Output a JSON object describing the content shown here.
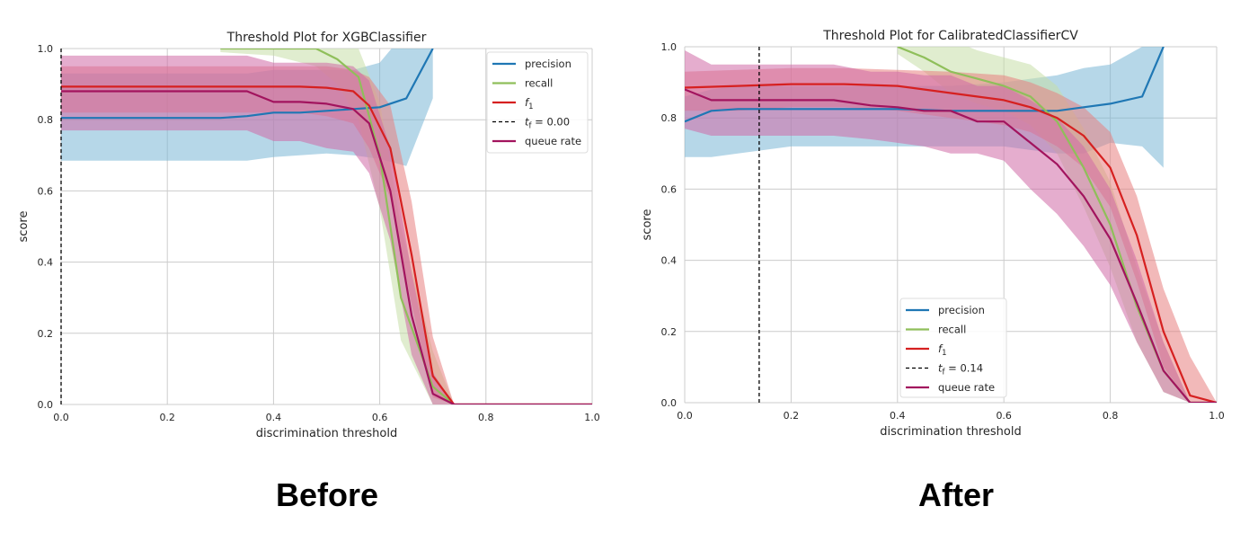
{
  "captions": {
    "before": "Before",
    "after": "After"
  },
  "colors": {
    "precision": "#1f77b4",
    "recall": "#8fbf5a",
    "f1": "#d62020",
    "queue": "#a2145e",
    "precision_band": "#7ab6d6",
    "recall_band": "#c6dea8",
    "f1_band": "#e88080",
    "queue_band": "#d06aa6"
  },
  "chart_data": [
    {
      "type": "line",
      "title": "Threshold Plot for XGBClassifier",
      "xlabel": "discrimination threshold",
      "ylabel": "score",
      "xlim": [
        0,
        1
      ],
      "ylim": [
        0,
        1
      ],
      "xticks": [
        "0.0",
        "0.2",
        "0.4",
        "0.6",
        "0.8",
        "1.0"
      ],
      "yticks": [
        "0.0",
        "0.2",
        "0.4",
        "0.6",
        "0.8",
        "1.0"
      ],
      "grid": true,
      "legend_position": "top-right",
      "threshold": 0.0,
      "series": [
        {
          "name": "precision",
          "key": "precision",
          "x": [
            0,
            0.1,
            0.2,
            0.3,
            0.35,
            0.4,
            0.45,
            0.5,
            0.55,
            0.6,
            0.65,
            0.7
          ],
          "y": [
            0.805,
            0.805,
            0.805,
            0.805,
            0.81,
            0.82,
            0.82,
            0.825,
            0.83,
            0.835,
            0.86,
            1.0
          ],
          "lo": [
            0.685,
            0.685,
            0.685,
            0.685,
            0.685,
            0.695,
            0.7,
            0.705,
            0.7,
            0.69,
            0.67,
            0.86
          ],
          "hi": [
            0.93,
            0.93,
            0.93,
            0.93,
            0.93,
            0.94,
            0.94,
            0.94,
            0.94,
            0.96,
            1.05,
            1.05
          ]
        },
        {
          "name": "recall",
          "key": "recall",
          "x": [
            0.3,
            0.4,
            0.48,
            0.52,
            0.56,
            0.6,
            0.64,
            0.7,
            0.74,
            1.0
          ],
          "y": [
            1.0,
            1.0,
            1.0,
            0.97,
            0.92,
            0.7,
            0.3,
            0.05,
            0.0,
            0.0
          ],
          "lo": [
            0.99,
            0.98,
            0.95,
            0.9,
            0.8,
            0.55,
            0.18,
            0.0,
            0.0,
            0.0
          ],
          "hi": [
            1.05,
            1.05,
            1.05,
            1.05,
            1.0,
            0.85,
            0.5,
            0.15,
            0.0,
            0.0
          ]
        },
        {
          "name": "f1",
          "key": "f1",
          "x": [
            0,
            0.1,
            0.2,
            0.3,
            0.35,
            0.4,
            0.45,
            0.5,
            0.55,
            0.58,
            0.62,
            0.66,
            0.7,
            0.74,
            1.0
          ],
          "y": [
            0.893,
            0.893,
            0.893,
            0.893,
            0.893,
            0.893,
            0.893,
            0.89,
            0.88,
            0.84,
            0.72,
            0.42,
            0.08,
            0.0,
            0.0
          ],
          "lo": [
            0.82,
            0.82,
            0.82,
            0.82,
            0.82,
            0.82,
            0.82,
            0.81,
            0.79,
            0.72,
            0.58,
            0.28,
            0.02,
            0.0,
            0.0
          ],
          "hi": [
            0.95,
            0.95,
            0.95,
            0.95,
            0.95,
            0.95,
            0.95,
            0.95,
            0.94,
            0.92,
            0.84,
            0.57,
            0.19,
            0.0,
            0.0
          ]
        },
        {
          "name": "queue rate",
          "key": "queue",
          "x": [
            0,
            0.1,
            0.2,
            0.3,
            0.35,
            0.4,
            0.45,
            0.5,
            0.55,
            0.58,
            0.62,
            0.66,
            0.7,
            0.74,
            1.0
          ],
          "y": [
            0.88,
            0.88,
            0.88,
            0.88,
            0.88,
            0.85,
            0.85,
            0.845,
            0.83,
            0.79,
            0.6,
            0.25,
            0.03,
            0.0,
            0.0
          ],
          "lo": [
            0.77,
            0.77,
            0.77,
            0.77,
            0.77,
            0.74,
            0.74,
            0.72,
            0.71,
            0.65,
            0.46,
            0.14,
            0.0,
            0.0,
            0.0
          ],
          "hi": [
            0.98,
            0.98,
            0.98,
            0.98,
            0.98,
            0.96,
            0.96,
            0.96,
            0.95,
            0.91,
            0.72,
            0.37,
            0.09,
            0.0,
            0.0
          ]
        }
      ],
      "legend": [
        {
          "key": "precision",
          "label": "precision"
        },
        {
          "key": "recall",
          "label": "recall"
        },
        {
          "key": "f1",
          "label": "f",
          "sub": "1"
        },
        {
          "key": "threshold",
          "label": "t",
          "sub": "f",
          "rest": " = 0.00"
        },
        {
          "key": "queue",
          "label": "queue rate"
        }
      ]
    },
    {
      "type": "line",
      "title": "Threshold Plot for CalibratedClassifierCV",
      "xlabel": "discrimination threshold",
      "ylabel": "score",
      "xlim": [
        0,
        1
      ],
      "ylim": [
        0,
        1
      ],
      "xticks": [
        "0.0",
        "0.2",
        "0.4",
        "0.6",
        "0.8",
        "1.0"
      ],
      "yticks": [
        "0.0",
        "0.2",
        "0.4",
        "0.6",
        "0.8",
        "1.0"
      ],
      "grid": true,
      "legend_position": "bottom-center",
      "threshold": 0.14,
      "series": [
        {
          "name": "precision",
          "key": "precision",
          "x": [
            0,
            0.05,
            0.1,
            0.2,
            0.3,
            0.4,
            0.5,
            0.6,
            0.7,
            0.75,
            0.8,
            0.86,
            0.9
          ],
          "y": [
            0.79,
            0.82,
            0.825,
            0.825,
            0.825,
            0.825,
            0.82,
            0.82,
            0.82,
            0.83,
            0.84,
            0.86,
            1.0
          ],
          "lo": [
            0.69,
            0.69,
            0.7,
            0.72,
            0.72,
            0.72,
            0.72,
            0.72,
            0.7,
            0.7,
            0.73,
            0.72,
            0.66
          ],
          "hi": [
            0.86,
            0.88,
            0.89,
            0.89,
            0.89,
            0.89,
            0.89,
            0.9,
            0.92,
            0.94,
            0.95,
            1.0,
            1.05
          ]
        },
        {
          "name": "recall",
          "key": "recall",
          "x": [
            0.4,
            0.45,
            0.5,
            0.55,
            0.6,
            0.65,
            0.7,
            0.75,
            0.8,
            0.85,
            0.9,
            0.95,
            1.0
          ],
          "y": [
            1.0,
            0.97,
            0.93,
            0.91,
            0.89,
            0.86,
            0.79,
            0.66,
            0.5,
            0.27,
            0.09,
            0.0,
            0.0
          ],
          "lo": [
            0.98,
            0.93,
            0.87,
            0.84,
            0.82,
            0.78,
            0.7,
            0.55,
            0.38,
            0.17,
            0.03,
            0.0,
            0.0
          ],
          "hi": [
            1.05,
            1.05,
            1.02,
            0.99,
            0.97,
            0.95,
            0.89,
            0.77,
            0.62,
            0.38,
            0.17,
            0.0,
            0.0
          ]
        },
        {
          "name": "f1",
          "key": "f1",
          "x": [
            0,
            0.1,
            0.2,
            0.3,
            0.4,
            0.5,
            0.6,
            0.65,
            0.7,
            0.75,
            0.8,
            0.85,
            0.9,
            0.95,
            1.0
          ],
          "y": [
            0.885,
            0.89,
            0.895,
            0.895,
            0.89,
            0.87,
            0.85,
            0.83,
            0.8,
            0.75,
            0.66,
            0.47,
            0.2,
            0.02,
            0.0
          ],
          "lo": [
            0.82,
            0.82,
            0.83,
            0.83,
            0.82,
            0.8,
            0.78,
            0.76,
            0.72,
            0.66,
            0.55,
            0.34,
            0.1,
            0.0,
            0.0
          ],
          "hi": [
            0.93,
            0.935,
            0.94,
            0.94,
            0.935,
            0.93,
            0.92,
            0.9,
            0.87,
            0.83,
            0.76,
            0.58,
            0.32,
            0.13,
            0.0
          ]
        },
        {
          "name": "queue rate",
          "key": "queue",
          "x": [
            0,
            0.05,
            0.1,
            0.2,
            0.28,
            0.35,
            0.4,
            0.45,
            0.5,
            0.55,
            0.6,
            0.65,
            0.7,
            0.75,
            0.8,
            0.85,
            0.9,
            0.95,
            1.0
          ],
          "y": [
            0.88,
            0.85,
            0.85,
            0.85,
            0.85,
            0.835,
            0.83,
            0.82,
            0.82,
            0.79,
            0.79,
            0.73,
            0.67,
            0.58,
            0.46,
            0.28,
            0.09,
            0.0,
            0.0
          ],
          "lo": [
            0.77,
            0.75,
            0.75,
            0.75,
            0.75,
            0.74,
            0.73,
            0.72,
            0.7,
            0.7,
            0.68,
            0.6,
            0.53,
            0.44,
            0.33,
            0.17,
            0.03,
            0.0,
            0.0
          ],
          "hi": [
            0.99,
            0.95,
            0.95,
            0.95,
            0.95,
            0.93,
            0.93,
            0.92,
            0.92,
            0.89,
            0.89,
            0.85,
            0.8,
            0.72,
            0.6,
            0.4,
            0.17,
            0.0,
            0.0
          ]
        }
      ],
      "legend": [
        {
          "key": "precision",
          "label": "precision"
        },
        {
          "key": "recall",
          "label": "recall"
        },
        {
          "key": "f1",
          "label": "f",
          "sub": "1"
        },
        {
          "key": "threshold",
          "label": "t",
          "sub": "f",
          "rest": " = 0.14"
        },
        {
          "key": "queue",
          "label": "queue rate"
        }
      ]
    }
  ]
}
